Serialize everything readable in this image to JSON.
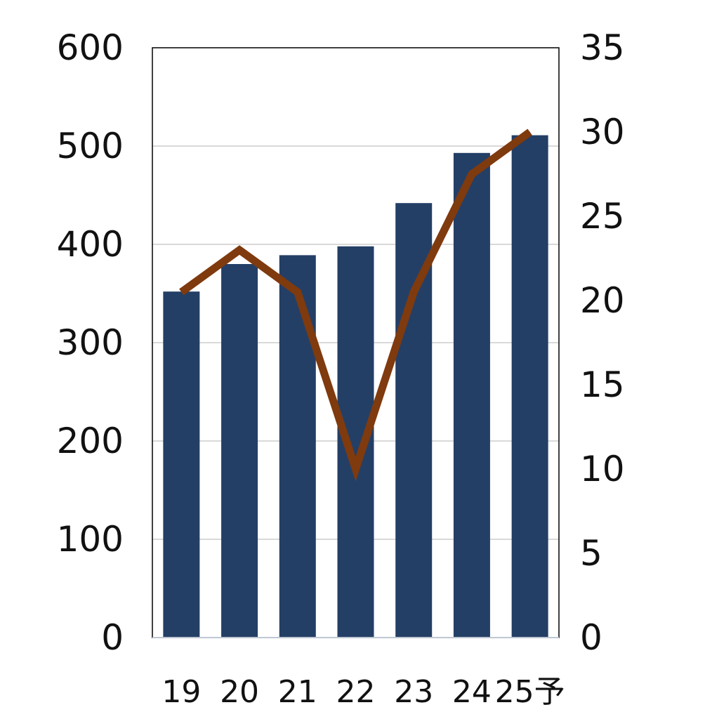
{
  "chart_data": {
    "type": "bar",
    "categories": [
      "19",
      "20",
      "21",
      "22",
      "23",
      "24",
      "25予"
    ],
    "series": [
      {
        "type": "bar",
        "axis": "left",
        "color": "#243F66",
        "values": [
          352,
          380,
          389,
          398,
          442,
          493,
          511
        ]
      },
      {
        "type": "line",
        "axis": "right",
        "color": "#7F3A0E",
        "values": [
          20.5,
          23.0,
          20.5,
          10.0,
          20.5,
          27.5,
          30.0
        ]
      }
    ],
    "y_left": {
      "ticks": [
        "0",
        "100",
        "200",
        "300",
        "400",
        "500",
        "600"
      ],
      "lim": [
        0,
        600
      ]
    },
    "y_right": {
      "ticks": [
        "0",
        "5",
        "10",
        "15",
        "20",
        "25",
        "30",
        "35"
      ],
      "lim": [
        0,
        35
      ]
    },
    "grid": true,
    "legend": "none",
    "title": "",
    "xlabel": "",
    "ylabel": ""
  }
}
